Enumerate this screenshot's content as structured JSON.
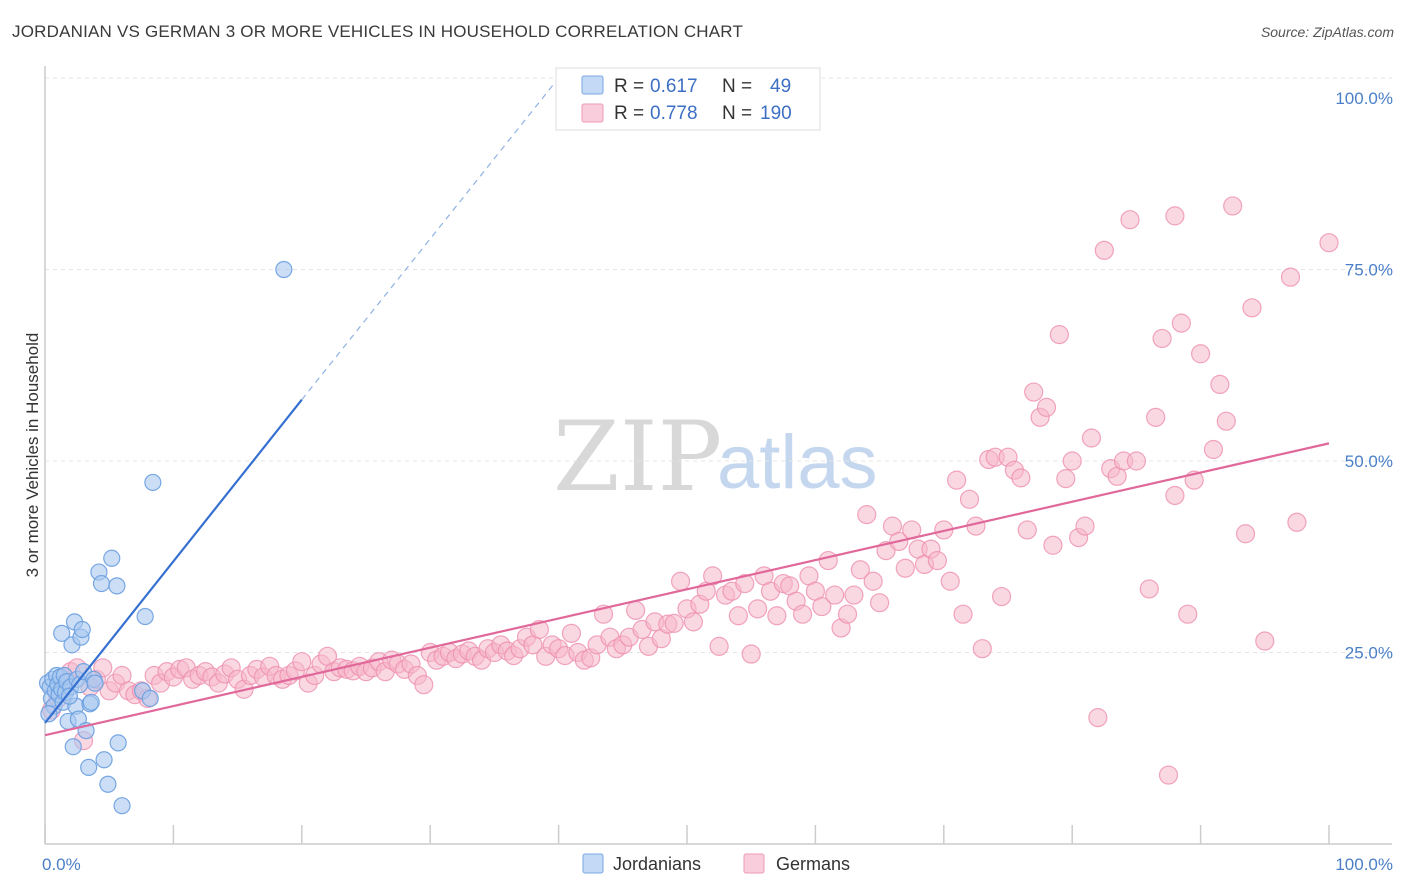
{
  "header": {
    "title": "JORDANIAN VS GERMAN 3 OR MORE VEHICLES IN HOUSEHOLD CORRELATION CHART",
    "source": "Source: ZipAtlas.com"
  },
  "watermark": {
    "zip": "ZIP",
    "atlas": "atlas"
  },
  "legend": {
    "rows": [
      {
        "r_label": "R =",
        "r_value": "0.617",
        "n_label": "N =",
        "n_value": "49",
        "color": "#a9c8f0"
      },
      {
        "r_label": "R =",
        "r_value": "0.778",
        "n_label": "N =",
        "n_value": "190",
        "color": "#f5b8cb"
      }
    ]
  },
  "bottom_legend": {
    "jordanians": "Jordanians",
    "germans": "Germans"
  },
  "chart_data": {
    "type": "scatter",
    "title": "JORDANIAN VS GERMAN 3 OR MORE VEHICLES IN HOUSEHOLD CORRELATION CHART",
    "xlabel": "",
    "ylabel": "3 or more Vehicles in Household",
    "xlim": [
      0,
      100
    ],
    "ylim": [
      0,
      100
    ],
    "x_tick_labels": [
      "0.0%",
      "100.0%"
    ],
    "y_ticks": [
      25,
      50,
      75,
      100
    ],
    "y_tick_labels": [
      "25.0%",
      "50.0%",
      "75.0%",
      "100.0%"
    ],
    "grid": true,
    "legend_position": "top-center",
    "series": [
      {
        "name": "Jordanians",
        "color": "#6a9fe0",
        "fill": "#a9c8f0",
        "trend_color": "#3570d0",
        "trend": {
          "x0": 0.0,
          "y0": 15.8,
          "x1": 20.0,
          "y1": 58.0,
          "dash_to_x": 40.0,
          "dash_to_y": 100.0
        },
        "points": [
          [
            0.2,
            21.0
          ],
          [
            0.4,
            20.5
          ],
          [
            0.5,
            19.0
          ],
          [
            0.6,
            21.5
          ],
          [
            0.7,
            18.0
          ],
          [
            0.8,
            20.0
          ],
          [
            0.9,
            22.0
          ],
          [
            1.0,
            20.8
          ],
          [
            1.1,
            19.5
          ],
          [
            1.2,
            21.8
          ],
          [
            1.3,
            20.2
          ],
          [
            1.4,
            18.5
          ],
          [
            1.5,
            22.0
          ],
          [
            1.6,
            19.8
          ],
          [
            1.7,
            21.2
          ],
          [
            1.8,
            16.0
          ],
          [
            2.0,
            20.5
          ],
          [
            2.1,
            26.0
          ],
          [
            2.2,
            12.7
          ],
          [
            2.3,
            29.0
          ],
          [
            2.4,
            18.0
          ],
          [
            2.5,
            21.5
          ],
          [
            2.6,
            16.3
          ],
          [
            2.7,
            20.8
          ],
          [
            2.8,
            27.0
          ],
          [
            2.9,
            28.0
          ],
          [
            3.0,
            22.5
          ],
          [
            3.2,
            14.8
          ],
          [
            3.4,
            10.0
          ],
          [
            3.5,
            18.3
          ],
          [
            3.6,
            18.5
          ],
          [
            3.8,
            21.5
          ],
          [
            4.2,
            35.5
          ],
          [
            4.4,
            34.0
          ],
          [
            4.6,
            11.0
          ],
          [
            4.9,
            7.8
          ],
          [
            5.2,
            37.3
          ],
          [
            5.6,
            33.7
          ],
          [
            5.7,
            13.2
          ],
          [
            6.0,
            5.0
          ],
          [
            7.6,
            20.0
          ],
          [
            7.8,
            29.7
          ],
          [
            8.2,
            19.0
          ],
          [
            8.4,
            47.2
          ],
          [
            18.6,
            75.0
          ],
          [
            1.3,
            27.5
          ],
          [
            0.3,
            17.0
          ],
          [
            1.9,
            19.3
          ],
          [
            3.9,
            21.0
          ]
        ]
      },
      {
        "name": "Germans",
        "color": "#ee8faf",
        "fill": "#f5b8cb",
        "trend_color": "#e0689a",
        "trend": {
          "x0": 0.0,
          "y0": 14.2,
          "x1": 100.0,
          "y1": 52.3
        },
        "points": [
          [
            0.5,
            17.5
          ],
          [
            1.0,
            19.0
          ],
          [
            1.5,
            21.0
          ],
          [
            2.0,
            22.5
          ],
          [
            2.5,
            23.0
          ],
          [
            3.0,
            13.5
          ],
          [
            3.5,
            20.5
          ],
          [
            4.0,
            21.5
          ],
          [
            4.5,
            23.0
          ],
          [
            5.0,
            20.0
          ],
          [
            5.5,
            21.0
          ],
          [
            6.0,
            22.0
          ],
          [
            6.5,
            20.0
          ],
          [
            7.0,
            19.5
          ],
          [
            7.5,
            20.0
          ],
          [
            8.0,
            19.0
          ],
          [
            8.5,
            22.0
          ],
          [
            9.0,
            21.0
          ],
          [
            9.5,
            22.5
          ],
          [
            10.0,
            21.8
          ],
          [
            10.5,
            22.8
          ],
          [
            11.0,
            23.0
          ],
          [
            11.5,
            21.5
          ],
          [
            12.0,
            22.0
          ],
          [
            12.5,
            22.5
          ],
          [
            13.0,
            21.8
          ],
          [
            13.5,
            21.0
          ],
          [
            14.0,
            22.2
          ],
          [
            14.5,
            23.0
          ],
          [
            15.0,
            21.5
          ],
          [
            15.5,
            20.2
          ],
          [
            16.0,
            22.0
          ],
          [
            16.5,
            22.8
          ],
          [
            17.0,
            21.8
          ],
          [
            17.5,
            23.2
          ],
          [
            18.0,
            22.0
          ],
          [
            18.5,
            21.5
          ],
          [
            19.0,
            22.0
          ],
          [
            19.5,
            22.6
          ],
          [
            20.0,
            23.8
          ],
          [
            20.5,
            21.0
          ],
          [
            21.0,
            22.0
          ],
          [
            21.5,
            23.5
          ],
          [
            22.0,
            24.5
          ],
          [
            22.5,
            22.5
          ],
          [
            23.0,
            23.0
          ],
          [
            23.5,
            22.8
          ],
          [
            24.0,
            22.6
          ],
          [
            24.5,
            23.2
          ],
          [
            25.0,
            22.5
          ],
          [
            25.5,
            23.0
          ],
          [
            26.0,
            23.8
          ],
          [
            26.5,
            22.5
          ],
          [
            27.0,
            24.0
          ],
          [
            27.5,
            23.5
          ],
          [
            28.0,
            22.8
          ],
          [
            28.5,
            23.5
          ],
          [
            29.0,
            22.0
          ],
          [
            29.5,
            20.8
          ],
          [
            30.0,
            25.0
          ],
          [
            30.5,
            24.0
          ],
          [
            31.0,
            24.5
          ],
          [
            31.5,
            25.0
          ],
          [
            32.0,
            24.2
          ],
          [
            32.5,
            24.8
          ],
          [
            33.0,
            25.2
          ],
          [
            33.5,
            24.5
          ],
          [
            34.0,
            24.0
          ],
          [
            34.5,
            25.5
          ],
          [
            35.0,
            25.0
          ],
          [
            35.5,
            26.0
          ],
          [
            36.0,
            25.2
          ],
          [
            36.5,
            24.6
          ],
          [
            37.0,
            25.5
          ],
          [
            37.5,
            27.0
          ],
          [
            38.0,
            26.0
          ],
          [
            38.5,
            28.0
          ],
          [
            39.0,
            24.5
          ],
          [
            39.5,
            26.0
          ],
          [
            40.0,
            25.5
          ],
          [
            40.5,
            24.6
          ],
          [
            41.0,
            27.5
          ],
          [
            41.5,
            25.0
          ],
          [
            42.0,
            24.0
          ],
          [
            42.5,
            24.3
          ],
          [
            43.0,
            26.0
          ],
          [
            43.5,
            30.0
          ],
          [
            44.0,
            27.0
          ],
          [
            44.5,
            25.5
          ],
          [
            45.0,
            26.0
          ],
          [
            45.5,
            27.0
          ],
          [
            46.0,
            30.5
          ],
          [
            46.5,
            28.0
          ],
          [
            47.0,
            25.8
          ],
          [
            47.5,
            29.0
          ],
          [
            48.0,
            26.8
          ],
          [
            48.5,
            28.7
          ],
          [
            49.0,
            28.8
          ],
          [
            49.5,
            34.3
          ],
          [
            50.0,
            30.7
          ],
          [
            50.5,
            29.0
          ],
          [
            51.0,
            31.3
          ],
          [
            51.5,
            33.0
          ],
          [
            52.0,
            35.0
          ],
          [
            52.5,
            25.8
          ],
          [
            53.0,
            32.5
          ],
          [
            53.5,
            33.0
          ],
          [
            54.0,
            29.8
          ],
          [
            54.5,
            34.0
          ],
          [
            55.0,
            24.8
          ],
          [
            55.5,
            30.7
          ],
          [
            56.0,
            35.0
          ],
          [
            56.5,
            33.0
          ],
          [
            57.0,
            29.8
          ],
          [
            57.5,
            34.0
          ],
          [
            58.0,
            33.7
          ],
          [
            58.5,
            31.7
          ],
          [
            59.0,
            30.0
          ],
          [
            59.5,
            35.0
          ],
          [
            60.0,
            33.0
          ],
          [
            60.5,
            31.0
          ],
          [
            61.0,
            37.0
          ],
          [
            61.5,
            32.5
          ],
          [
            62.0,
            28.2
          ],
          [
            62.5,
            30.0
          ],
          [
            63.0,
            32.5
          ],
          [
            63.5,
            35.8
          ],
          [
            64.0,
            43.0
          ],
          [
            64.5,
            34.3
          ],
          [
            65.0,
            31.5
          ],
          [
            65.5,
            38.3
          ],
          [
            66.0,
            41.5
          ],
          [
            66.5,
            39.5
          ],
          [
            67.0,
            36.0
          ],
          [
            67.5,
            41.0
          ],
          [
            68.0,
            38.5
          ],
          [
            68.5,
            36.5
          ],
          [
            69.0,
            38.5
          ],
          [
            69.5,
            37.0
          ],
          [
            70.0,
            41.0
          ],
          [
            70.5,
            34.3
          ],
          [
            71.0,
            47.5
          ],
          [
            71.5,
            30.0
          ],
          [
            72.0,
            45.0
          ],
          [
            72.5,
            41.5
          ],
          [
            73.0,
            25.5
          ],
          [
            73.5,
            50.2
          ],
          [
            74.0,
            50.5
          ],
          [
            74.5,
            32.3
          ],
          [
            75.0,
            50.5
          ],
          [
            75.5,
            48.8
          ],
          [
            76.0,
            47.8
          ],
          [
            76.5,
            41.0
          ],
          [
            77.0,
            59.0
          ],
          [
            77.5,
            55.7
          ],
          [
            78.0,
            57.0
          ],
          [
            78.5,
            39.0
          ],
          [
            79.0,
            66.5
          ],
          [
            79.5,
            47.7
          ],
          [
            80.0,
            50.0
          ],
          [
            80.5,
            40.0
          ],
          [
            81.0,
            41.5
          ],
          [
            81.5,
            53.0
          ],
          [
            82.0,
            16.5
          ],
          [
            82.5,
            77.5
          ],
          [
            83.0,
            49.0
          ],
          [
            83.5,
            48.0
          ],
          [
            84.0,
            50.0
          ],
          [
            84.5,
            81.5
          ],
          [
            85.0,
            50.0
          ],
          [
            86.0,
            33.3
          ],
          [
            86.5,
            55.7
          ],
          [
            87.0,
            66.0
          ],
          [
            87.5,
            9.0
          ],
          [
            88.0,
            45.5
          ],
          [
            88.5,
            68.0
          ],
          [
            89.0,
            30.0
          ],
          [
            89.5,
            47.5
          ],
          [
            90.0,
            64.0
          ],
          [
            91.0,
            51.5
          ],
          [
            91.5,
            60.0
          ],
          [
            92.0,
            55.2
          ],
          [
            92.5,
            83.3
          ],
          [
            93.5,
            40.5
          ],
          [
            94.0,
            70.0
          ],
          [
            95.0,
            26.5
          ],
          [
            97.5,
            42.0
          ],
          [
            100.0,
            78.5
          ],
          [
            88.0,
            82.0
          ],
          [
            97.0,
            74.0
          ]
        ]
      }
    ]
  }
}
